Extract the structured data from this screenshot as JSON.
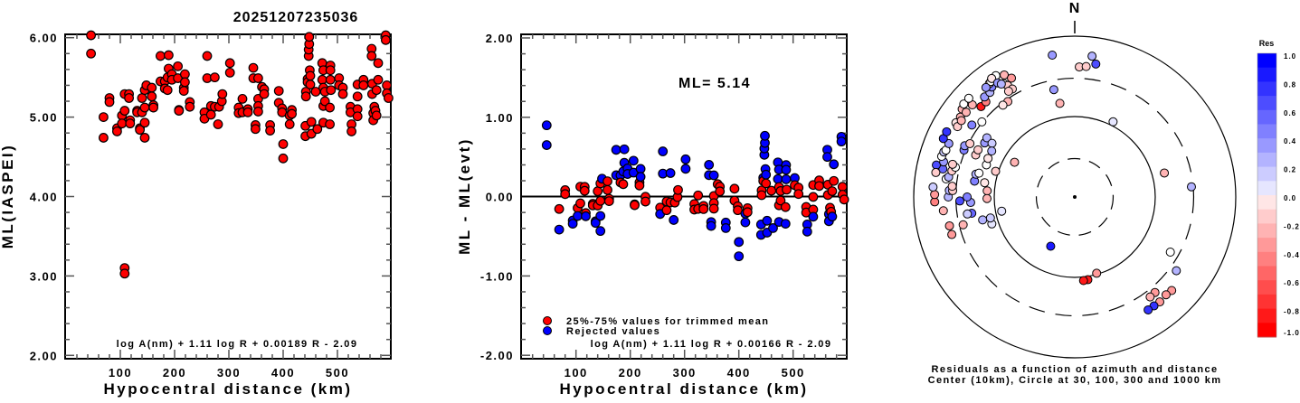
{
  "title": "20251207235036",
  "chart_data": [
    {
      "type": "scatter",
      "name": "ml-vs-distance",
      "xlabel": "Hypocentral distance (km)",
      "ylabel": "ML(IASPEI)",
      "xlim": [
        0,
        598
      ],
      "ylim": [
        2.0,
        6.0
      ],
      "xticks": [
        "100",
        "200",
        "300",
        "400",
        "500"
      ],
      "yticks": [
        "2.00",
        "3.00",
        "4.00",
        "5.00",
        "6.00"
      ],
      "formula": "log A(nm) + 1.11 log R + 0.00189 R - 2.09",
      "point_color": "#ff0000",
      "points": [
        [
          46,
          6.05
        ],
        [
          46,
          5.8
        ],
        [
          69,
          5.0
        ],
        [
          69,
          4.74
        ],
        [
          80,
          5.24
        ],
        [
          80,
          5.19
        ],
        [
          94,
          4.86
        ],
        [
          94,
          4.82
        ],
        [
          103,
          5.02
        ],
        [
          103,
          4.92
        ],
        [
          108,
          5.29
        ],
        [
          108,
          5.08
        ],
        [
          108,
          3.1
        ],
        [
          108,
          3.03
        ],
        [
          116,
          5.29
        ],
        [
          116,
          5.24
        ],
        [
          118,
          4.96
        ],
        [
          118,
          4.92
        ],
        [
          131,
          5.08
        ],
        [
          131,
          5.06
        ],
        [
          136,
          4.86
        ],
        [
          136,
          4.84
        ],
        [
          140,
          5.24
        ],
        [
          140,
          5.06
        ],
        [
          145,
          5.34
        ],
        [
          145,
          5.12
        ],
        [
          145,
          4.93
        ],
        [
          145,
          4.74
        ],
        [
          148,
          5.4
        ],
        [
          158,
          5.37
        ],
        [
          158,
          5.26
        ],
        [
          161,
          5.15
        ],
        [
          161,
          5.12
        ],
        [
          174,
          5.45
        ],
        [
          174,
          5.77
        ],
        [
          182,
          5.45
        ],
        [
          182,
          5.36
        ],
        [
          187,
          5.34
        ],
        [
          187,
          5.5
        ],
        [
          189,
          5.78
        ],
        [
          189,
          5.61
        ],
        [
          195,
          5.54
        ],
        [
          195,
          5.47
        ],
        [
          206,
          5.64
        ],
        [
          206,
          5.49
        ],
        [
          208,
          5.09
        ],
        [
          208,
          5.08
        ],
        [
          217,
          5.37
        ],
        [
          217,
          5.33
        ],
        [
          219,
          5.54
        ],
        [
          219,
          5.44
        ],
        [
          228,
          5.19
        ],
        [
          228,
          5.13
        ],
        [
          255,
          5.06
        ],
        [
          255,
          4.98
        ],
        [
          260,
          5.77
        ],
        [
          260,
          5.49
        ],
        [
          267,
          5.14
        ],
        [
          267,
          5.03
        ],
        [
          274,
          5.5
        ],
        [
          274,
          5.13
        ],
        [
          280,
          4.91
        ],
        [
          282,
          5.13
        ],
        [
          287,
          5.2
        ],
        [
          288,
          5.29
        ],
        [
          302,
          5.68
        ],
        [
          302,
          5.56
        ],
        [
          318,
          5.12
        ],
        [
          318,
          5.05
        ],
        [
          325,
          5.23
        ],
        [
          325,
          5.06
        ],
        [
          335,
          5.1
        ],
        [
          335,
          5.06
        ],
        [
          345,
          5.62
        ],
        [
          345,
          5.49
        ],
        [
          349,
          4.9
        ],
        [
          349,
          4.85
        ],
        [
          354,
          5.49
        ],
        [
          354,
          5.23
        ],
        [
          354,
          5.14
        ],
        [
          354,
          5.07
        ],
        [
          361,
          5.38
        ],
        [
          365,
          5.35
        ],
        [
          365,
          5.29
        ],
        [
          376,
          4.9
        ],
        [
          376,
          4.83
        ],
        [
          392,
          5.33
        ],
        [
          392,
          5.18
        ],
        [
          398,
          5.11
        ],
        [
          398,
          5.06
        ],
        [
          400,
          4.66
        ],
        [
          400,
          4.48
        ],
        [
          412,
          5.02
        ],
        [
          412,
          4.91
        ],
        [
          416,
          5.09
        ],
        [
          416,
          5.04
        ],
        [
          441,
          4.89
        ],
        [
          441,
          4.76
        ],
        [
          442,
          5.32
        ],
        [
          442,
          5.26
        ],
        [
          445,
          5.48
        ],
        [
          445,
          5.44
        ],
        [
          447,
          5.77
        ],
        [
          447,
          5.85
        ],
        [
          448,
          5.92
        ],
        [
          448,
          6.01
        ],
        [
          449,
          5.59
        ],
        [
          450,
          5.52
        ],
        [
          450,
          5.41
        ],
        [
          452,
          4.94
        ],
        [
          452,
          4.79
        ],
        [
          460,
          5.32
        ],
        [
          463,
          4.85
        ],
        [
          472,
          5.68
        ],
        [
          472,
          5.47
        ],
        [
          474,
          5.59
        ],
        [
          474,
          5.37
        ],
        [
          474,
          5.14
        ],
        [
          474,
          4.93
        ],
        [
          477,
          5.2
        ],
        [
          477,
          5.32
        ],
        [
          486,
          5.12
        ],
        [
          486,
          4.91
        ],
        [
          487,
          5.65
        ],
        [
          487,
          5.59
        ],
        [
          487,
          5.47
        ],
        [
          488,
          5.34
        ],
        [
          503,
          5.49
        ],
        [
          503,
          5.4
        ],
        [
          510,
          5.37
        ],
        [
          510,
          5.29
        ],
        [
          524,
          5.13
        ],
        [
          524,
          5.06
        ],
        [
          526,
          4.91
        ],
        [
          526,
          4.82
        ],
        [
          537,
          5.41
        ],
        [
          537,
          5.26
        ],
        [
          537,
          5.1
        ],
        [
          537,
          5.01
        ],
        [
          548,
          5.47
        ],
        [
          548,
          5.4
        ],
        [
          563,
          5.86
        ],
        [
          563,
          5.77
        ],
        [
          564,
          5.42
        ],
        [
          564,
          5.29
        ],
        [
          566,
          5.05
        ],
        [
          566,
          4.96
        ],
        [
          568,
          5.13
        ],
        [
          570,
          5.08
        ],
        [
          572,
          5.02
        ],
        [
          575,
          5.68
        ],
        [
          575,
          5.47
        ],
        [
          572,
          5.34
        ],
        [
          589,
          6.03
        ],
        [
          589,
          5.97
        ],
        [
          591,
          5.4
        ],
        [
          591,
          5.3
        ],
        [
          594,
          5.24
        ]
      ]
    },
    {
      "type": "scatter",
      "name": "residual-vs-distance",
      "xlabel": "Hypocentral distance (km)",
      "ylabel": "ML - ML(evt)",
      "xlim": [
        0,
        598
      ],
      "ylim": [
        -2.0,
        2.0
      ],
      "xticks": [
        "100",
        "200",
        "300",
        "400",
        "500"
      ],
      "yticks": [
        "-2.00",
        "-1.00",
        "0.00",
        "1.00",
        "2.00"
      ],
      "annotation": "ML= 5.14",
      "ml_event": 5.14,
      "coef_difference": 0.00023,
      "trim_range": [
        -0.21,
        0.21
      ],
      "formula": "log A(nm) + 1.11 log R + 0.00166 R - 2.09",
      "legend": [
        {
          "label": "25%-75% values for trimmed mean",
          "color": "#ff0000"
        },
        {
          "label": "Rejected values",
          "color": "#0000ff"
        }
      ],
      "source": "residuals = ML(point) - coef_difference*R - ml_event, from points of ml-vs-distance"
    },
    {
      "type": "scatter",
      "name": "residual-polar",
      "north_label": "N",
      "center_km": 10,
      "rings_km": [
        30,
        100,
        300,
        1000
      ],
      "caption": [
        "Residuals as a function of azimuth and distance",
        "Center (10km), Circle at 30, 100, 300 and 1000 km"
      ],
      "points_az_dist_res": [
        [
          351,
          611,
          0.4
        ],
        [
          7,
          581,
          0.3
        ],
        [
          9,
          472,
          0.7
        ],
        [
          2,
          415,
          -0.2
        ],
        [
          5,
          425,
          -0.25
        ],
        [
          349,
          229,
          0.4
        ],
        [
          351,
          151,
          -0.35
        ],
        [
          27,
          112,
          0.05
        ],
        [
          75,
          142,
          -0.3
        ],
        [
          85,
          285,
          0.3
        ],
        [
          120,
          235,
          0.0
        ],
        [
          126,
          363,
          0.3
        ],
        [
          134,
          472,
          -0.4
        ],
        [
          137,
          460,
          -0.4
        ],
        [
          140,
          355,
          -0.4
        ],
        [
          143,
          360,
          -0.3
        ],
        [
          141,
          477,
          -0.4
        ],
        [
          144,
          472,
          0.8
        ],
        [
          147,
          472,
          0.8
        ],
        [
          164,
          97,
          -0.4
        ],
        [
          171,
          110,
          -0.9
        ],
        [
          174,
          111,
          -0.9
        ],
        [
          206,
          48,
          0.85
        ],
        [
          300,
          73,
          -0.3
        ],
        [
          259,
          84,
          0.05
        ],
        [
          288,
          108,
          -0.25
        ],
        [
          290,
          147,
          0.0
        ],
        [
          279,
          136,
          -0.15
        ],
        [
          274,
          123,
          -0.3
        ],
        [
          269,
          123,
          -0.3
        ],
        [
          252,
          121,
          0.05
        ],
        [
          256,
          120,
          0.2
        ],
        [
          256,
          151,
          0.25
        ],
        [
          261,
          197,
          0.6
        ],
        [
          261,
          224,
          0.2
        ],
        [
          267,
          197,
          0.35
        ],
        [
          270,
          217,
          0.5
        ],
        [
          268,
          268,
          0.65
        ],
        [
          256,
          268,
          -0.3
        ],
        [
          257,
          395,
          -0.45
        ],
        [
          253,
          395,
          -0.45
        ],
        [
          264,
          437,
          -0.3
        ],
        [
          268,
          550,
          -0.5
        ],
        [
          271,
          550,
          -0.45
        ],
        [
          274,
          581,
          0.2
        ],
        [
          270,
          372,
          0.3
        ],
        [
          273,
          363,
          0.25
        ],
        [
          273,
          330,
          -0.2
        ],
        [
          275,
          337,
          -0.25
        ],
        [
          279,
          182,
          0.5
        ],
        [
          283,
          182,
          0.3
        ],
        [
          284,
          168,
          0.0
        ],
        [
          278,
          410,
          0.0
        ],
        [
          279,
          385,
          0.25
        ],
        [
          282,
          472,
          0.55
        ],
        [
          283,
          581,
          0.7
        ],
        [
          280,
          565,
          -0.25
        ],
        [
          285,
          485,
          0.35
        ],
        [
          287,
          535,
          0.0
        ],
        [
          282,
          363,
          -0.2
        ],
        [
          284,
          337,
          0.0
        ],
        [
          285,
          372,
          -0.2
        ],
        [
          289,
          525,
          0.2
        ],
        [
          290,
          505,
          0.0
        ],
        [
          293,
          500,
          0.35
        ],
        [
          294,
          611,
          0.8
        ],
        [
          297,
          611,
          0.8
        ],
        [
          293,
          312,
          0.5
        ],
        [
          295,
          322,
          0.4
        ],
        [
          297,
          289,
          -0.2
        ],
        [
          293,
          217,
          -0.25
        ],
        [
          296,
          217,
          -0.2
        ],
        [
          301,
          202,
          0.35
        ],
        [
          304,
          207,
          0.3
        ],
        [
          303,
          168,
          0.2
        ],
        [
          299,
          151,
          0.25
        ],
        [
          294,
          151,
          -0.15
        ],
        [
          302,
          550,
          -0.15
        ],
        [
          301,
          500,
          -0.25
        ],
        [
          305,
          540,
          -0.3
        ],
        [
          304,
          500,
          -0.3
        ],
        [
          308,
          595,
          -0.35
        ],
        [
          308,
          515,
          -0.35
        ],
        [
          312,
          515,
          -0.3
        ],
        [
          310,
          630,
          0.0
        ],
        [
          313,
          630,
          0.0
        ],
        [
          305,
          363,
          0.5
        ],
        [
          309,
          305,
          0.0
        ],
        [
          314,
          415,
          -0.9
        ],
        [
          317,
          415,
          -0.5
        ],
        [
          318,
          472,
          0.4
        ],
        [
          321,
          472,
          0.3
        ],
        [
          323,
          515,
          0.5
        ],
        [
          323,
          581,
          -0.25
        ],
        [
          324,
          595,
          0.0
        ],
        [
          327,
          630,
          0.0
        ],
        [
          325,
          630,
          -0.15
        ],
        [
          330,
          565,
          -0.3
        ],
        [
          332,
          472,
          -0.45
        ],
        [
          326,
          515,
          0.4
        ],
        [
          328,
          460,
          0.0
        ],
        [
          329,
          415,
          -0.25
        ],
        [
          330,
          355,
          -0.25
        ],
        [
          328,
          355,
          -0.2
        ],
        [
          325,
          281,
          -0.3
        ],
        [
          322,
          281,
          -0.15
        ],
        [
          327,
          472,
          0.25
        ],
        [
          321,
          565,
          0.35
        ]
      ]
    },
    {
      "type": "heatmap",
      "name": "colorbar",
      "title": "Res",
      "range": [
        -1.0,
        1.0
      ],
      "step": 0.1,
      "tick_labels": [
        "1.0",
        "0.8",
        "0.6",
        "0.4",
        "0.2",
        "0.0",
        "-0.2",
        "-0.4",
        "-0.6",
        "-0.8",
        "-1.0"
      ],
      "colors": {
        "positive": "#0000ff",
        "zero": "#ffffff",
        "negative": "#ff0000"
      }
    }
  ]
}
